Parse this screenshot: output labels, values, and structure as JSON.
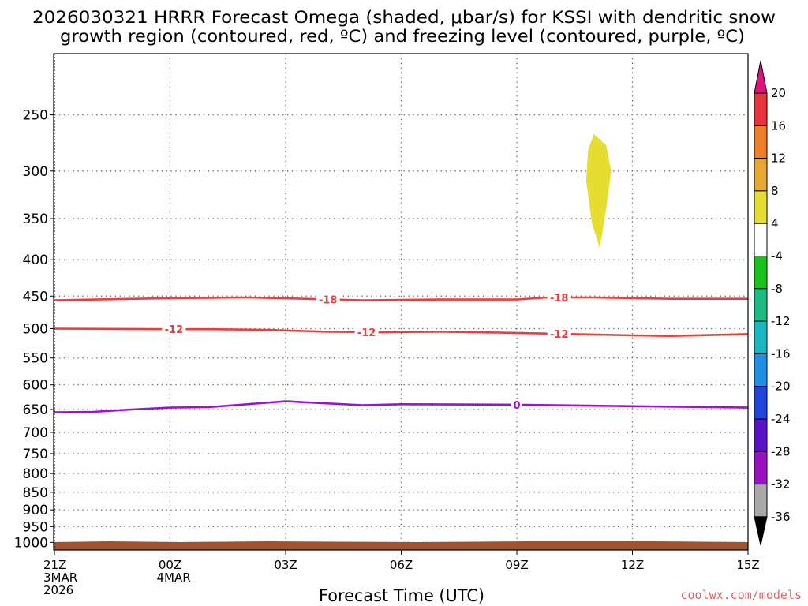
{
  "chart_data": {
    "type": "time-height cross-section",
    "title_line1": "2026030321 HRRR Forecast Omega (shaded, μbar/s) for KSSI with dendritic snow",
    "title_line2": "growth region (contoured, red, ºC) and freezing level (contoured, purple, ºC)",
    "xlabel": "Forecast Time (UTC)",
    "credit": "coolwx.com/models",
    "y_ticks": [
      250,
      300,
      350,
      400,
      450,
      500,
      550,
      600,
      650,
      700,
      750,
      800,
      850,
      900,
      950,
      1000
    ],
    "y_range_hPa": [
      205,
      1025
    ],
    "x_range_hours": [
      0,
      18
    ],
    "x_ticks": [
      {
        "hour": 0,
        "lines": [
          "21Z",
          "3MAR",
          "2026"
        ]
      },
      {
        "hour": 3,
        "lines": [
          "00Z",
          "4MAR"
        ]
      },
      {
        "hour": 6,
        "lines": [
          "03Z"
        ]
      },
      {
        "hour": 9,
        "lines": [
          "06Z"
        ]
      },
      {
        "hour": 12,
        "lines": [
          "09Z"
        ]
      },
      {
        "hour": 15,
        "lines": [
          "12Z"
        ]
      },
      {
        "hour": 18,
        "lines": [
          "15Z"
        ]
      }
    ],
    "colorbar": {
      "labels": [
        "20",
        "16",
        "12",
        "8",
        "4",
        "-4",
        "-8",
        "-12",
        "-16",
        "-20",
        "-24",
        "-28",
        "-32",
        "-36"
      ],
      "boxes": [
        {
          "color": "#e8343a"
        },
        {
          "color": "#f07f23"
        },
        {
          "color": "#e6a92c"
        },
        {
          "color": "#e5dd30"
        },
        {
          "color": "#ffffff"
        },
        {
          "color": "#14c41a"
        },
        {
          "color": "#18be84"
        },
        {
          "color": "#15b9c4"
        },
        {
          "color": "#1b91e8"
        },
        {
          "color": "#1f44e0"
        },
        {
          "color": "#5a12c8"
        },
        {
          "color": "#9a10c4"
        },
        {
          "color": "#a8a8a8"
        }
      ],
      "top_arrow_color": "#e01280",
      "bottom_arrow_color": "#000000"
    },
    "series": [
      {
        "name": "dendritic -18 contour",
        "color": "#ee3b3b",
        "points": [
          [
            0,
            456
          ],
          [
            3,
            453
          ],
          [
            5,
            452
          ],
          [
            6.5,
            454
          ],
          [
            8,
            456
          ],
          [
            10,
            455
          ],
          [
            12,
            455
          ],
          [
            12.8,
            452
          ],
          [
            14,
            452
          ],
          [
            16,
            454
          ],
          [
            18,
            454
          ]
        ],
        "labels": [
          {
            "text": "-18",
            "hour": 7.1
          },
          {
            "text": "-18",
            "hour": 13.1
          }
        ]
      },
      {
        "name": "dendritic -12 contour",
        "color": "#ee3b3b",
        "points": [
          [
            0,
            500
          ],
          [
            3,
            501
          ],
          [
            4,
            501
          ],
          [
            5.5,
            502
          ],
          [
            7,
            505
          ],
          [
            8.5,
            506
          ],
          [
            10,
            505
          ],
          [
            12,
            507
          ],
          [
            13.5,
            509
          ],
          [
            15,
            511
          ],
          [
            16,
            512
          ],
          [
            18,
            509
          ]
        ],
        "labels": [
          {
            "text": "-12",
            "hour": 3.1
          },
          {
            "text": "-12",
            "hour": 8.1
          },
          {
            "text": "-12",
            "hour": 13.1
          }
        ]
      },
      {
        "name": "freezing level 0 contour",
        "color": "#9c10d0",
        "points": [
          [
            0,
            656
          ],
          [
            1,
            655
          ],
          [
            2,
            650
          ],
          [
            3,
            646
          ],
          [
            4,
            645
          ],
          [
            6,
            633
          ],
          [
            8,
            641
          ],
          [
            9,
            639
          ],
          [
            12,
            640
          ],
          [
            14,
            642
          ],
          [
            18,
            646
          ]
        ],
        "labels": [
          {
            "text": "0",
            "hour": 12
          }
        ]
      }
    ],
    "omega_area": {
      "value": "4 to 8",
      "color": "#e5dd30",
      "outline_hours_hPa": [
        [
          14,
          266
        ],
        [
          14.32,
          276
        ],
        [
          14.45,
          300
        ],
        [
          14.3,
          345
        ],
        [
          14.15,
          385
        ],
        [
          13.95,
          355
        ],
        [
          13.8,
          310
        ],
        [
          13.85,
          280
        ]
      ]
    },
    "terrain_color": "#a0522d"
  }
}
